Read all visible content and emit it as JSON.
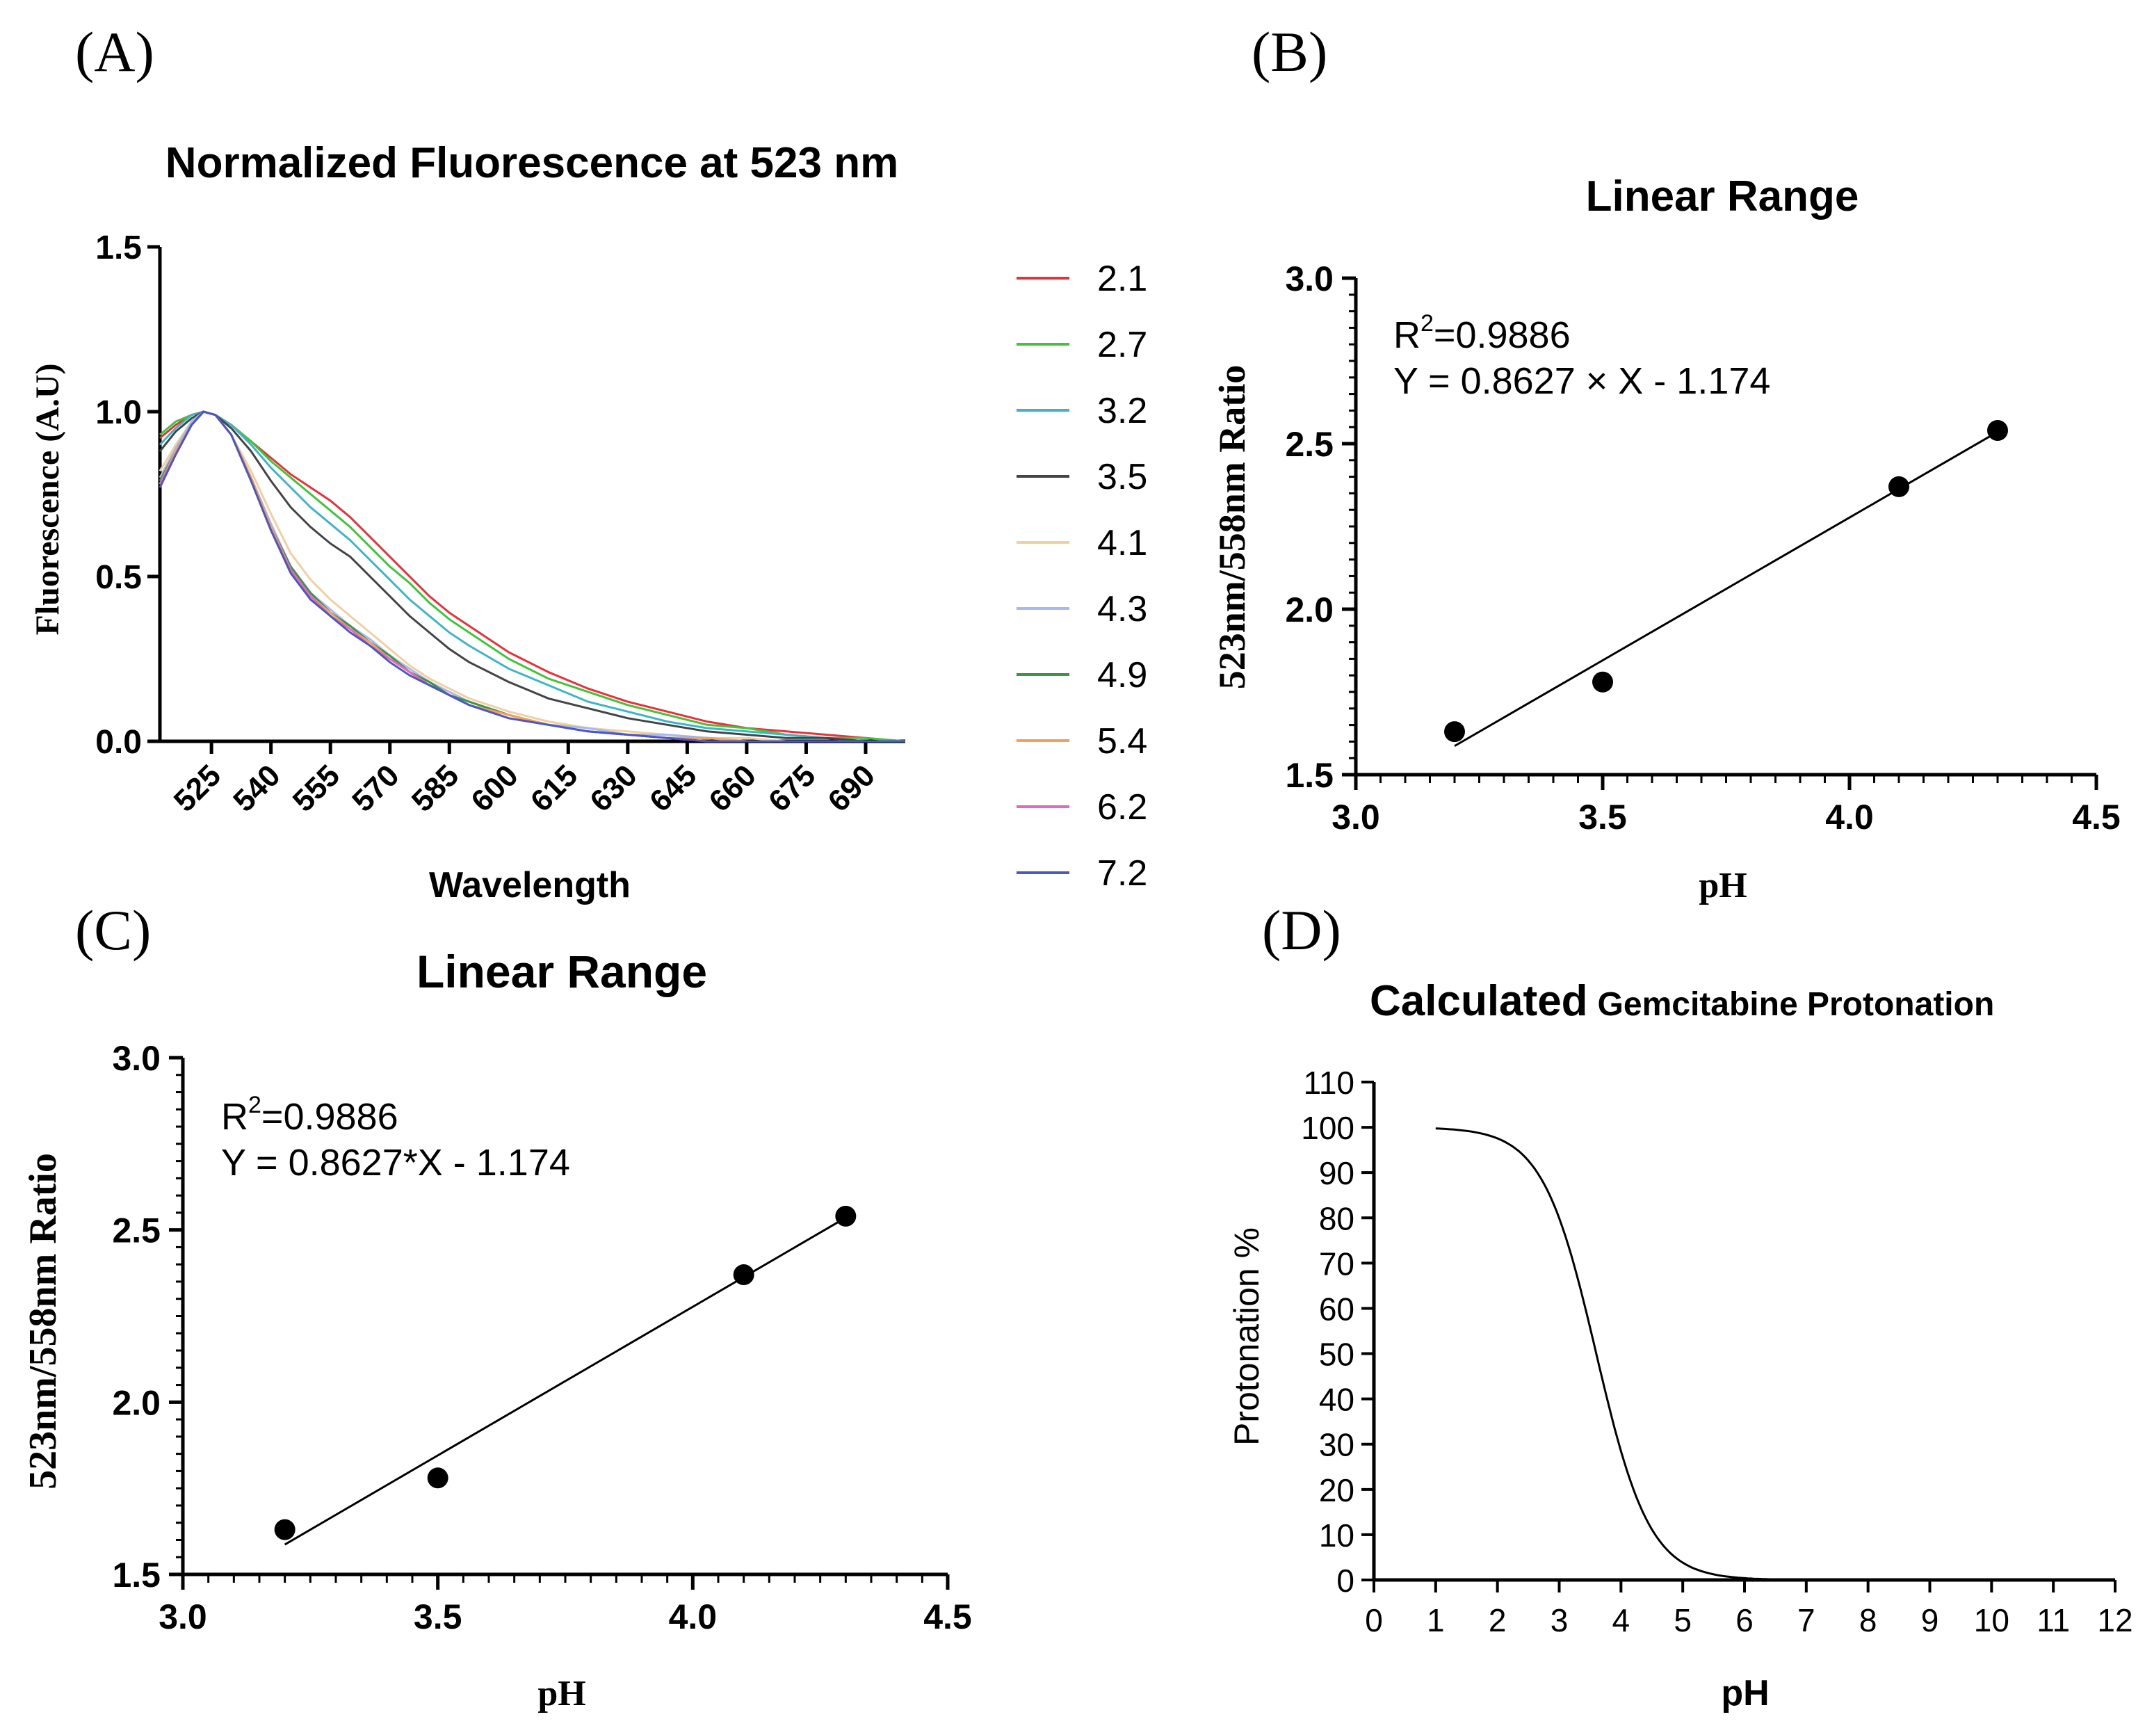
{
  "chart_data": [
    {
      "panel": "(A)",
      "type": "line",
      "title": "Normalized Fluorescence at 523 nm",
      "xlabel": "Wavelength",
      "ylabel": "Fluorescence (A.U)",
      "xlim": [
        512,
        700
      ],
      "ylim": [
        0,
        1.5
      ],
      "xticks": [
        525,
        540,
        555,
        570,
        585,
        600,
        615,
        630,
        645,
        660,
        675,
        690
      ],
      "yticks": [
        "0.0",
        "0.5",
        "1.0",
        "1.5"
      ],
      "legend_position": "right",
      "x": [
        512,
        516,
        520,
        523,
        526,
        530,
        535,
        540,
        545,
        550,
        555,
        560,
        565,
        570,
        575,
        580,
        585,
        590,
        600,
        610,
        620,
        630,
        640,
        650,
        660,
        670,
        680,
        690,
        700
      ],
      "series": [
        {
          "name": "2.1",
          "color": "#e8303a",
          "values": [
            0.92,
            0.96,
            0.99,
            1.0,
            0.99,
            0.96,
            0.91,
            0.86,
            0.81,
            0.77,
            0.73,
            0.68,
            0.62,
            0.56,
            0.5,
            0.44,
            0.39,
            0.35,
            0.27,
            0.21,
            0.16,
            0.12,
            0.09,
            0.06,
            0.04,
            0.03,
            0.02,
            0.01,
            0.0
          ]
        },
        {
          "name": "2.7",
          "color": "#3fc43a",
          "values": [
            0.93,
            0.97,
            0.99,
            1.0,
            0.99,
            0.96,
            0.91,
            0.85,
            0.8,
            0.75,
            0.7,
            0.65,
            0.59,
            0.53,
            0.48,
            0.42,
            0.37,
            0.33,
            0.25,
            0.19,
            0.15,
            0.11,
            0.08,
            0.05,
            0.04,
            0.02,
            0.01,
            0.01,
            0.0
          ]
        },
        {
          "name": "3.2",
          "color": "#3fb4c8",
          "values": [
            0.9,
            0.95,
            0.99,
            1.0,
            0.99,
            0.96,
            0.9,
            0.83,
            0.77,
            0.71,
            0.66,
            0.61,
            0.55,
            0.49,
            0.43,
            0.38,
            0.33,
            0.29,
            0.22,
            0.17,
            0.12,
            0.09,
            0.06,
            0.04,
            0.03,
            0.02,
            0.01,
            0.0,
            0.0
          ]
        },
        {
          "name": "3.5",
          "color": "#444444",
          "values": [
            0.88,
            0.94,
            0.98,
            1.0,
            0.99,
            0.95,
            0.88,
            0.79,
            0.71,
            0.65,
            0.6,
            0.56,
            0.5,
            0.44,
            0.38,
            0.33,
            0.28,
            0.24,
            0.18,
            0.13,
            0.1,
            0.07,
            0.05,
            0.03,
            0.02,
            0.01,
            0.01,
            0.0,
            0.0
          ]
        },
        {
          "name": "4.1",
          "color": "#f0d0a0",
          "values": [
            0.82,
            0.9,
            0.97,
            1.0,
            0.99,
            0.93,
            0.82,
            0.69,
            0.57,
            0.49,
            0.43,
            0.38,
            0.33,
            0.28,
            0.23,
            0.19,
            0.16,
            0.13,
            0.09,
            0.06,
            0.04,
            0.03,
            0.02,
            0.01,
            0.01,
            0.0,
            0.0,
            0.0,
            0.0
          ]
        },
        {
          "name": "4.3",
          "color": "#aab8f0",
          "values": [
            0.8,
            0.89,
            0.97,
            1.0,
            0.99,
            0.93,
            0.8,
            0.66,
            0.53,
            0.45,
            0.4,
            0.35,
            0.31,
            0.26,
            0.22,
            0.18,
            0.15,
            0.12,
            0.08,
            0.05,
            0.04,
            0.02,
            0.02,
            0.01,
            0.0,
            0.0,
            0.0,
            0.0,
            0.0
          ]
        },
        {
          "name": "4.9",
          "color": "#3c9448",
          "values": [
            0.79,
            0.88,
            0.96,
            1.0,
            0.99,
            0.93,
            0.8,
            0.65,
            0.53,
            0.45,
            0.39,
            0.35,
            0.3,
            0.26,
            0.21,
            0.18,
            0.14,
            0.12,
            0.08,
            0.05,
            0.03,
            0.02,
            0.01,
            0.01,
            0.0,
            0.0,
            0.0,
            0.0,
            0.0
          ]
        },
        {
          "name": "5.4",
          "color": "#f0a060",
          "values": [
            0.78,
            0.88,
            0.96,
            1.0,
            0.99,
            0.93,
            0.8,
            0.65,
            0.52,
            0.44,
            0.39,
            0.34,
            0.3,
            0.25,
            0.21,
            0.17,
            0.14,
            0.11,
            0.08,
            0.05,
            0.03,
            0.02,
            0.01,
            0.01,
            0.0,
            0.0,
            0.0,
            0.0,
            0.0
          ]
        },
        {
          "name": "6.2",
          "color": "#e868b8",
          "values": [
            0.78,
            0.87,
            0.96,
            1.0,
            0.99,
            0.93,
            0.79,
            0.64,
            0.52,
            0.44,
            0.38,
            0.34,
            0.29,
            0.25,
            0.21,
            0.17,
            0.14,
            0.11,
            0.07,
            0.05,
            0.03,
            0.02,
            0.01,
            0.0,
            0.0,
            0.0,
            0.0,
            0.0,
            0.0
          ]
        },
        {
          "name": "7.2",
          "color": "#4a58c0",
          "values": [
            0.77,
            0.87,
            0.96,
            1.0,
            0.99,
            0.93,
            0.79,
            0.64,
            0.51,
            0.43,
            0.38,
            0.33,
            0.29,
            0.24,
            0.2,
            0.17,
            0.14,
            0.11,
            0.07,
            0.05,
            0.03,
            0.02,
            0.01,
            0.0,
            0.0,
            0.0,
            0.0,
            0.0,
            0.0
          ]
        }
      ]
    },
    {
      "panel": "(B)",
      "type": "scatter",
      "title": "Linear Range",
      "xlabel": "pH",
      "ylabel": "523nm/558nm Ratio",
      "xlim": [
        3.0,
        4.5
      ],
      "ylim": [
        1.5,
        3.0
      ],
      "xticks": [
        "3.0",
        "3.5",
        "4.0",
        "4.5"
      ],
      "yticks": [
        "1.5",
        "2.0",
        "2.5",
        "3.0"
      ],
      "points": [
        {
          "x": 3.2,
          "y": 1.63
        },
        {
          "x": 3.5,
          "y": 1.78
        },
        {
          "x": 4.1,
          "y": 2.37
        },
        {
          "x": 4.3,
          "y": 2.54
        }
      ],
      "fit": {
        "slope": 0.8627,
        "intercept": -1.174,
        "x_range": [
          3.2,
          4.3
        ]
      },
      "annotation_r2_value": "=0.9886",
      "annotation_equation": "Y = 0.8627 × X - 1.174"
    },
    {
      "panel": "(C)",
      "type": "scatter",
      "title": "Linear Range",
      "xlabel": "pH",
      "ylabel": "523nm/558nm Ratio",
      "xlim": [
        3.0,
        4.5
      ],
      "ylim": [
        1.5,
        3.0
      ],
      "xticks": [
        "3.0",
        "3.5",
        "4.0",
        "4.5"
      ],
      "yticks": [
        "1.5",
        "2.0",
        "2.5",
        "3.0"
      ],
      "points": [
        {
          "x": 3.2,
          "y": 1.63
        },
        {
          "x": 3.5,
          "y": 1.78
        },
        {
          "x": 4.1,
          "y": 2.37
        },
        {
          "x": 4.3,
          "y": 2.54
        }
      ],
      "fit": {
        "slope": 0.8627,
        "intercept": -1.174,
        "x_range": [
          3.2,
          4.3
        ]
      },
      "annotation_r2_value": "=0.9886",
      "annotation_equation": "Y = 0.8627*X - 1.174"
    },
    {
      "panel": "(D)",
      "type": "line",
      "title_part1": "Calculated",
      "title_part2": "Gemcitabine Protonation",
      "xlabel": "pH",
      "ylabel": "Protonation %",
      "xlim": [
        0,
        12
      ],
      "ylim": [
        0,
        110
      ],
      "xticks": [
        "0",
        "1",
        "2",
        "3",
        "4",
        "5",
        "6",
        "7",
        "8",
        "9",
        "10",
        "11",
        "12"
      ],
      "yticks": [
        "0",
        "10",
        "20",
        "30",
        "40",
        "50",
        "60",
        "70",
        "80",
        "90",
        "100",
        "110"
      ],
      "curve": {
        "model": "100 / (1 + 10^(pH - pKa))",
        "pKa": 3.6,
        "x_range": [
          1,
          12
        ]
      }
    }
  ],
  "labels": {
    "r_symbol": "R",
    "superscript_2": "2"
  }
}
